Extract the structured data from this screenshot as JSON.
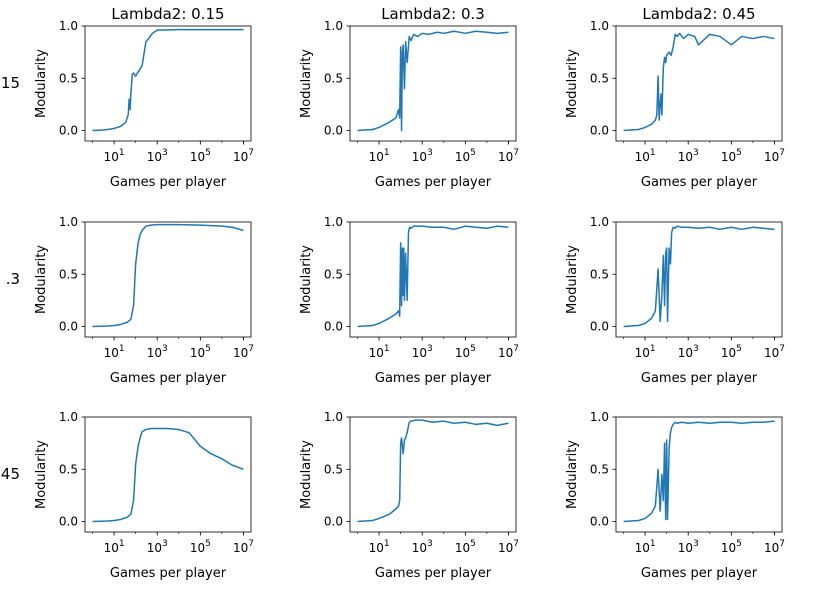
{
  "figure": {
    "row_labels": [
      "15",
      ".3",
      "45"
    ],
    "line_color": "#1f77b4"
  },
  "chart_data": [
    {
      "type": "line",
      "title": "Lambda2: 0.15",
      "xlabel": "Games per player",
      "ylabel": "Modularity",
      "xscale": "log",
      "xlim": [
        1,
        10000000
      ],
      "ylim": [
        -0.1,
        1.0
      ],
      "xticks": [
        "10^1",
        "10^3",
        "10^5",
        "10^7"
      ],
      "yticks": [
        "0.0",
        "0.5",
        "1.0"
      ],
      "series": [
        {
          "x": [
            1,
            3,
            5,
            10,
            20,
            35,
            45,
            50,
            55,
            60,
            70,
            80,
            100,
            120,
            150,
            200,
            250,
            300,
            400,
            600,
            1000,
            10000,
            100000,
            1000000,
            10000000
          ],
          "values": [
            0.0,
            0.005,
            0.01,
            0.02,
            0.04,
            0.08,
            0.15,
            0.3,
            0.2,
            0.35,
            0.54,
            0.55,
            0.52,
            0.55,
            0.58,
            0.62,
            0.75,
            0.85,
            0.88,
            0.93,
            0.96,
            0.965,
            0.965,
            0.965,
            0.965
          ]
        }
      ]
    },
    {
      "type": "line",
      "title": "Lambda2: 0.3",
      "xlabel": "Games per player",
      "ylabel": "Modularity",
      "xscale": "log",
      "xlim": [
        1,
        10000000
      ],
      "ylim": [
        -0.1,
        1.0
      ],
      "xticks": [
        "10^1",
        "10^3",
        "10^5",
        "10^7"
      ],
      "yticks": [
        "0.0",
        "0.5",
        "1.0"
      ],
      "series": [
        {
          "x": [
            1,
            5,
            10,
            30,
            60,
            80,
            90,
            100,
            110,
            120,
            130,
            150,
            170,
            200,
            250,
            300,
            400,
            600,
            1000,
            2000,
            5000,
            10000,
            30000,
            100000,
            300000,
            1000000,
            3000000,
            10000000
          ],
          "values": [
            0.0,
            0.01,
            0.03,
            0.08,
            0.12,
            0.2,
            0.12,
            0.8,
            0.0,
            0.75,
            0.82,
            0.4,
            0.85,
            0.65,
            0.9,
            0.86,
            0.92,
            0.9,
            0.93,
            0.92,
            0.94,
            0.93,
            0.95,
            0.93,
            0.95,
            0.94,
            0.93,
            0.94
          ]
        }
      ]
    },
    {
      "type": "line",
      "title": "Lambda2: 0.45",
      "xlabel": "Games per player",
      "ylabel": "Modularity",
      "xscale": "log",
      "xlim": [
        1,
        10000000
      ],
      "ylim": [
        -0.1,
        1.0
      ],
      "xticks": [
        "10^1",
        "10^3",
        "10^5",
        "10^7"
      ],
      "yticks": [
        "0.0",
        "0.5",
        "1.0"
      ],
      "series": [
        {
          "x": [
            1,
            5,
            10,
            20,
            30,
            35,
            40,
            45,
            50,
            55,
            60,
            70,
            80,
            90,
            100,
            130,
            160,
            200,
            250,
            300,
            400,
            600,
            1000,
            2000,
            3000,
            10000,
            30000,
            100000,
            300000,
            1000000,
            3000000,
            10000000
          ],
          "values": [
            0.0,
            0.01,
            0.03,
            0.06,
            0.1,
            0.15,
            0.52,
            0.1,
            0.25,
            0.35,
            0.15,
            0.6,
            0.7,
            0.65,
            0.72,
            0.75,
            0.72,
            0.8,
            0.92,
            0.9,
            0.93,
            0.88,
            0.92,
            0.9,
            0.82,
            0.92,
            0.9,
            0.82,
            0.9,
            0.88,
            0.9,
            0.88
          ]
        }
      ]
    },
    {
      "type": "line",
      "title": "",
      "xlabel": "Games per player",
      "ylabel": "Modularity",
      "xscale": "log",
      "xlim": [
        1,
        10000000
      ],
      "ylim": [
        -0.1,
        1.0
      ],
      "xticks": [
        "10^1",
        "10^3",
        "10^5",
        "10^7"
      ],
      "yticks": [
        "0.0",
        "0.5",
        "1.0"
      ],
      "series": [
        {
          "x": [
            1,
            5,
            10,
            20,
            40,
            60,
            80,
            100,
            130,
            160,
            200,
            300,
            500,
            1000,
            3000,
            10000,
            100000,
            1000000,
            3000000,
            10000000
          ],
          "values": [
            0.0,
            0.005,
            0.01,
            0.02,
            0.04,
            0.07,
            0.2,
            0.6,
            0.8,
            0.88,
            0.92,
            0.96,
            0.97,
            0.975,
            0.975,
            0.975,
            0.97,
            0.96,
            0.95,
            0.92
          ]
        }
      ]
    },
    {
      "type": "line",
      "title": "",
      "xlabel": "Games per player",
      "ylabel": "Modularity",
      "xscale": "log",
      "xlim": [
        1,
        10000000
      ],
      "ylim": [
        -0.1,
        1.0
      ],
      "xticks": [
        "10^1",
        "10^3",
        "10^5",
        "10^7"
      ],
      "yticks": [
        "0.0",
        "0.5",
        "1.0"
      ],
      "series": [
        {
          "x": [
            1,
            5,
            10,
            30,
            60,
            80,
            90,
            100,
            110,
            120,
            130,
            140,
            150,
            170,
            200,
            230,
            260,
            300,
            400,
            1000,
            3000,
            10000,
            30000,
            100000,
            300000,
            1000000,
            3000000,
            10000000
          ],
          "values": [
            0.0,
            0.01,
            0.03,
            0.08,
            0.12,
            0.15,
            0.1,
            0.8,
            0.2,
            0.75,
            0.3,
            0.75,
            0.25,
            0.7,
            0.25,
            0.9,
            0.95,
            0.94,
            0.96,
            0.96,
            0.95,
            0.95,
            0.93,
            0.96,
            0.95,
            0.94,
            0.96,
            0.95
          ]
        }
      ]
    },
    {
      "type": "line",
      "title": "",
      "xlabel": "Games per player",
      "ylabel": "Modularity",
      "xscale": "log",
      "xlim": [
        1,
        10000000
      ],
      "ylim": [
        -0.1,
        1.0
      ],
      "xticks": [
        "10^1",
        "10^3",
        "10^5",
        "10^7"
      ],
      "yticks": [
        "0.0",
        "0.5",
        "1.0"
      ],
      "series": [
        {
          "x": [
            1,
            5,
            10,
            20,
            30,
            40,
            50,
            60,
            70,
            80,
            90,
            100,
            110,
            130,
            150,
            170,
            200,
            250,
            300,
            500,
            1000,
            3000,
            10000,
            30000,
            100000,
            300000,
            1000000,
            3000000,
            10000000
          ],
          "values": [
            0.0,
            0.01,
            0.03,
            0.08,
            0.15,
            0.55,
            0.05,
            0.3,
            0.68,
            0.2,
            0.7,
            0.75,
            0.05,
            0.75,
            0.6,
            0.9,
            0.95,
            0.94,
            0.96,
            0.95,
            0.95,
            0.94,
            0.95,
            0.93,
            0.95,
            0.93,
            0.95,
            0.94,
            0.93
          ]
        }
      ]
    },
    {
      "type": "line",
      "title": "",
      "xlabel": "Games per player",
      "ylabel": "Modularity",
      "xscale": "log",
      "xlim": [
        1,
        10000000
      ],
      "ylim": [
        -0.1,
        1.0
      ],
      "xticks": [
        "10^1",
        "10^3",
        "10^5",
        "10^7"
      ],
      "yticks": [
        "0.0",
        "0.5",
        "1.0"
      ],
      "series": [
        {
          "x": [
            1,
            5,
            10,
            20,
            40,
            60,
            80,
            100,
            130,
            170,
            200,
            300,
            500,
            1000,
            3000,
            10000,
            30000,
            100000,
            300000,
            1000000,
            3000000,
            10000000
          ],
          "values": [
            0.0,
            0.005,
            0.01,
            0.02,
            0.04,
            0.07,
            0.2,
            0.55,
            0.72,
            0.82,
            0.86,
            0.88,
            0.89,
            0.89,
            0.89,
            0.88,
            0.85,
            0.72,
            0.65,
            0.6,
            0.54,
            0.5
          ]
        }
      ]
    },
    {
      "type": "line",
      "title": "",
      "xlabel": "Games per player",
      "ylabel": "Modularity",
      "xscale": "log",
      "xlim": [
        1,
        10000000
      ],
      "ylim": [
        -0.1,
        1.0
      ],
      "xticks": [
        "10^1",
        "10^3",
        "10^5",
        "10^7"
      ],
      "yticks": [
        "0.0",
        "0.5",
        "1.0"
      ],
      "series": [
        {
          "x": [
            1,
            5,
            10,
            30,
            60,
            80,
            90,
            100,
            110,
            130,
            150,
            170,
            200,
            250,
            300,
            500,
            1000,
            3000,
            10000,
            30000,
            100000,
            300000,
            1000000,
            3000000,
            10000000
          ],
          "values": [
            0.0,
            0.01,
            0.03,
            0.07,
            0.12,
            0.15,
            0.2,
            0.75,
            0.8,
            0.65,
            0.78,
            0.8,
            0.85,
            0.95,
            0.96,
            0.97,
            0.97,
            0.95,
            0.96,
            0.94,
            0.95,
            0.93,
            0.94,
            0.92,
            0.94
          ]
        }
      ]
    },
    {
      "type": "line",
      "title": "",
      "xlabel": "Games per player",
      "ylabel": "Modularity",
      "xscale": "log",
      "xlim": [
        1,
        10000000
      ],
      "ylim": [
        -0.1,
        1.0
      ],
      "xticks": [
        "10^1",
        "10^3",
        "10^5",
        "10^7"
      ],
      "yticks": [
        "0.0",
        "0.5",
        "1.0"
      ],
      "series": [
        {
          "x": [
            1,
            5,
            10,
            20,
            30,
            40,
            50,
            60,
            70,
            80,
            90,
            100,
            110,
            130,
            150,
            170,
            200,
            250,
            300,
            500,
            1000,
            3000,
            10000,
            30000,
            100000,
            300000,
            1000000,
            3000000,
            10000000
          ],
          "values": [
            0.0,
            0.01,
            0.03,
            0.08,
            0.15,
            0.5,
            0.1,
            0.45,
            0.2,
            0.75,
            0.02,
            0.78,
            0.02,
            0.7,
            0.85,
            0.9,
            0.93,
            0.95,
            0.94,
            0.95,
            0.94,
            0.95,
            0.94,
            0.95,
            0.95,
            0.94,
            0.95,
            0.95,
            0.96
          ]
        }
      ]
    }
  ]
}
